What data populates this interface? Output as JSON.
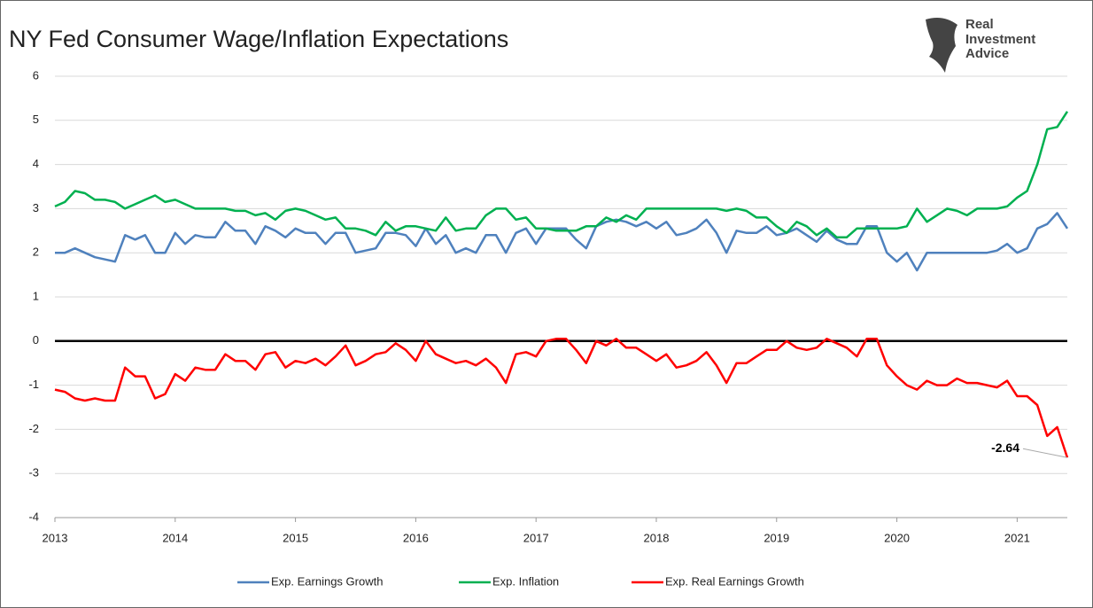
{
  "chart_data": {
    "type": "line",
    "title": "NY Fed Consumer Wage/Inflation Expectations",
    "logo_lines": [
      "Real",
      "Investment",
      "Advice"
    ],
    "x": [
      2013,
      2013.083,
      2013.167,
      2013.25,
      2013.333,
      2013.417,
      2013.5,
      2013.583,
      2013.667,
      2013.75,
      2013.833,
      2013.917,
      2014,
      2014.083,
      2014.167,
      2014.25,
      2014.333,
      2014.417,
      2014.5,
      2014.583,
      2014.667,
      2014.75,
      2014.833,
      2014.917,
      2015,
      2015.083,
      2015.167,
      2015.25,
      2015.333,
      2015.417,
      2015.5,
      2015.583,
      2015.667,
      2015.75,
      2015.833,
      2015.917,
      2016,
      2016.083,
      2016.167,
      2016.25,
      2016.333,
      2016.417,
      2016.5,
      2016.583,
      2016.667,
      2016.75,
      2016.833,
      2016.917,
      2017,
      2017.083,
      2017.167,
      2017.25,
      2017.333,
      2017.417,
      2017.5,
      2017.583,
      2017.667,
      2017.75,
      2017.833,
      2017.917,
      2018,
      2018.083,
      2018.167,
      2018.25,
      2018.333,
      2018.417,
      2018.5,
      2018.583,
      2018.667,
      2018.75,
      2018.833,
      2018.917,
      2019,
      2019.083,
      2019.167,
      2019.25,
      2019.333,
      2019.417,
      2019.5,
      2019.583,
      2019.667,
      2019.75,
      2019.833,
      2019.917,
      2020,
      2020.083,
      2020.167,
      2020.25,
      2020.333,
      2020.417,
      2020.5,
      2020.583,
      2020.667,
      2020.75,
      2020.833,
      2020.917,
      2021,
      2021.083,
      2021.167,
      2021.25,
      2021.333,
      2021.417
    ],
    "series": [
      {
        "name": "Exp. Earnings Growth",
        "color": "#4f81bd",
        "values": [
          2.0,
          2.0,
          2.1,
          2.0,
          1.9,
          1.85,
          1.8,
          2.4,
          2.3,
          2.4,
          2.0,
          2.0,
          2.45,
          2.2,
          2.4,
          2.35,
          2.35,
          2.7,
          2.5,
          2.5,
          2.2,
          2.6,
          2.5,
          2.35,
          2.55,
          2.45,
          2.45,
          2.2,
          2.45,
          2.45,
          2.0,
          2.05,
          2.1,
          2.45,
          2.45,
          2.4,
          2.15,
          2.55,
          2.2,
          2.4,
          2.0,
          2.1,
          2.0,
          2.4,
          2.4,
          2.0,
          2.45,
          2.55,
          2.2,
          2.55,
          2.55,
          2.55,
          2.3,
          2.1,
          2.6,
          2.7,
          2.75,
          2.7,
          2.6,
          2.7,
          2.55,
          2.7,
          2.4,
          2.45,
          2.55,
          2.75,
          2.45,
          2.0,
          2.5,
          2.45,
          2.45,
          2.6,
          2.4,
          2.45,
          2.55,
          2.4,
          2.25,
          2.5,
          2.3,
          2.2,
          2.2,
          2.6,
          2.6,
          2.0,
          1.8,
          2.0,
          1.6,
          2.0,
          2.0,
          2.0,
          2.0,
          2.0,
          2.0,
          2.0,
          2.05,
          2.2,
          2.0,
          2.1,
          2.55,
          2.65,
          2.9,
          2.55
        ]
      },
      {
        "name": "Exp. Inflation",
        "color": "#00b050",
        "values": [
          3.05,
          3.15,
          3.4,
          3.35,
          3.2,
          3.2,
          3.15,
          3.0,
          3.1,
          3.2,
          3.3,
          3.15,
          3.2,
          3.1,
          3.0,
          3.0,
          3.0,
          3.0,
          2.95,
          2.95,
          2.85,
          2.9,
          2.75,
          2.95,
          3.0,
          2.95,
          2.85,
          2.75,
          2.8,
          2.55,
          2.55,
          2.5,
          2.4,
          2.7,
          2.5,
          2.6,
          2.6,
          2.55,
          2.5,
          2.8,
          2.5,
          2.55,
          2.55,
          2.85,
          3.0,
          3.0,
          2.75,
          2.8,
          2.55,
          2.55,
          2.5,
          2.5,
          2.5,
          2.6,
          2.6,
          2.8,
          2.7,
          2.85,
          2.75,
          3.0,
          3.0,
          3.0,
          3.0,
          3.0,
          3.0,
          3.0,
          3.0,
          2.95,
          3.0,
          2.95,
          2.8,
          2.8,
          2.6,
          2.45,
          2.7,
          2.6,
          2.4,
          2.55,
          2.35,
          2.35,
          2.55,
          2.55,
          2.55,
          2.55,
          2.55,
          2.6,
          3.0,
          2.7,
          2.85,
          3.0,
          2.95,
          2.85,
          3.0,
          3.0,
          3.0,
          3.05,
          3.25,
          3.4,
          4.0,
          4.8,
          4.85,
          5.2
        ]
      },
      {
        "name": "Exp. Real Earnings Growth",
        "color": "#ff0000",
        "values": [
          -1.1,
          -1.15,
          -1.3,
          -1.35,
          -1.3,
          -1.35,
          -1.35,
          -0.6,
          -0.8,
          -0.8,
          -1.3,
          -1.2,
          -0.75,
          -0.9,
          -0.6,
          -0.65,
          -0.65,
          -0.3,
          -0.45,
          -0.45,
          -0.65,
          -0.3,
          -0.25,
          -0.6,
          -0.45,
          -0.5,
          -0.4,
          -0.55,
          -0.35,
          -0.1,
          -0.55,
          -0.45,
          -0.3,
          -0.25,
          -0.05,
          -0.2,
          -0.45,
          0.0,
          -0.3,
          -0.4,
          -0.5,
          -0.45,
          -0.55,
          -0.4,
          -0.6,
          -0.95,
          -0.3,
          -0.25,
          -0.35,
          0.0,
          0.05,
          0.05,
          -0.2,
          -0.5,
          0.0,
          -0.1,
          0.05,
          -0.15,
          -0.15,
          -0.3,
          -0.45,
          -0.3,
          -0.6,
          -0.55,
          -0.45,
          -0.25,
          -0.55,
          -0.95,
          -0.5,
          -0.5,
          -0.35,
          -0.2,
          -0.2,
          0.0,
          -0.15,
          -0.2,
          -0.15,
          0.05,
          -0.05,
          -0.15,
          -0.35,
          0.05,
          0.05,
          -0.55,
          -0.8,
          -1.0,
          -1.1,
          -0.9,
          -1.0,
          -1.0,
          -0.85,
          -0.95,
          -0.95,
          -1.0,
          -1.05,
          -0.9,
          -1.25,
          -1.25,
          -1.45,
          -2.15,
          -1.95,
          -2.64
        ]
      }
    ],
    "xlim": [
      2013,
      2021.417
    ],
    "xticks": [
      2013,
      2014,
      2015,
      2016,
      2017,
      2018,
      2019,
      2020,
      2021
    ],
    "ylim": [
      -4,
      6
    ],
    "yticks": [
      -4,
      -3,
      -2,
      -1,
      0,
      1,
      2,
      3,
      4,
      5,
      6
    ],
    "grid": true,
    "zero_line": true,
    "legend": "bottom",
    "label_last": {
      "series": 2
    }
  }
}
